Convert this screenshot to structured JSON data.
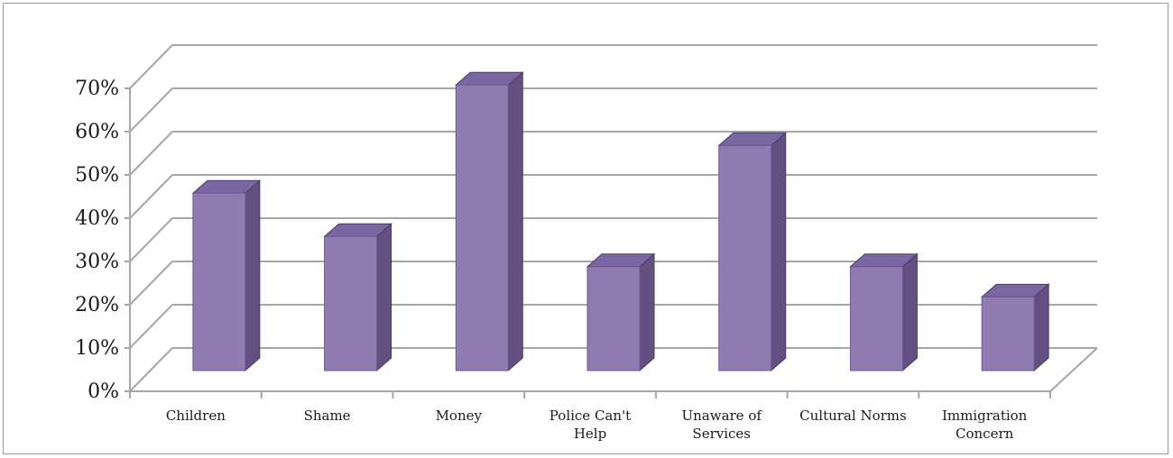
{
  "chart_data": {
    "type": "bar",
    "categories": [
      [
        "Children"
      ],
      [
        "Shame"
      ],
      [
        "Money"
      ],
      [
        "Police Can't",
        "Help"
      ],
      [
        "Unaware of",
        "Services"
      ],
      [
        "Cultural Norms"
      ],
      [
        "Immigration",
        "Concern"
      ]
    ],
    "values": [
      41,
      31,
      66,
      24,
      52,
      24,
      17
    ],
    "y_ticks": [
      "0%",
      "10%",
      "20%",
      "30%",
      "40%",
      "50%",
      "60%",
      "70%"
    ],
    "ylim": [
      0,
      70
    ],
    "grid": true,
    "legend": "none",
    "style": "3d-column",
    "colors": {
      "bar_front": "#8f7bb0",
      "bar_side": "#634f80",
      "bar_top": "#7a66a0",
      "grid": "#a6a6a6"
    }
  }
}
